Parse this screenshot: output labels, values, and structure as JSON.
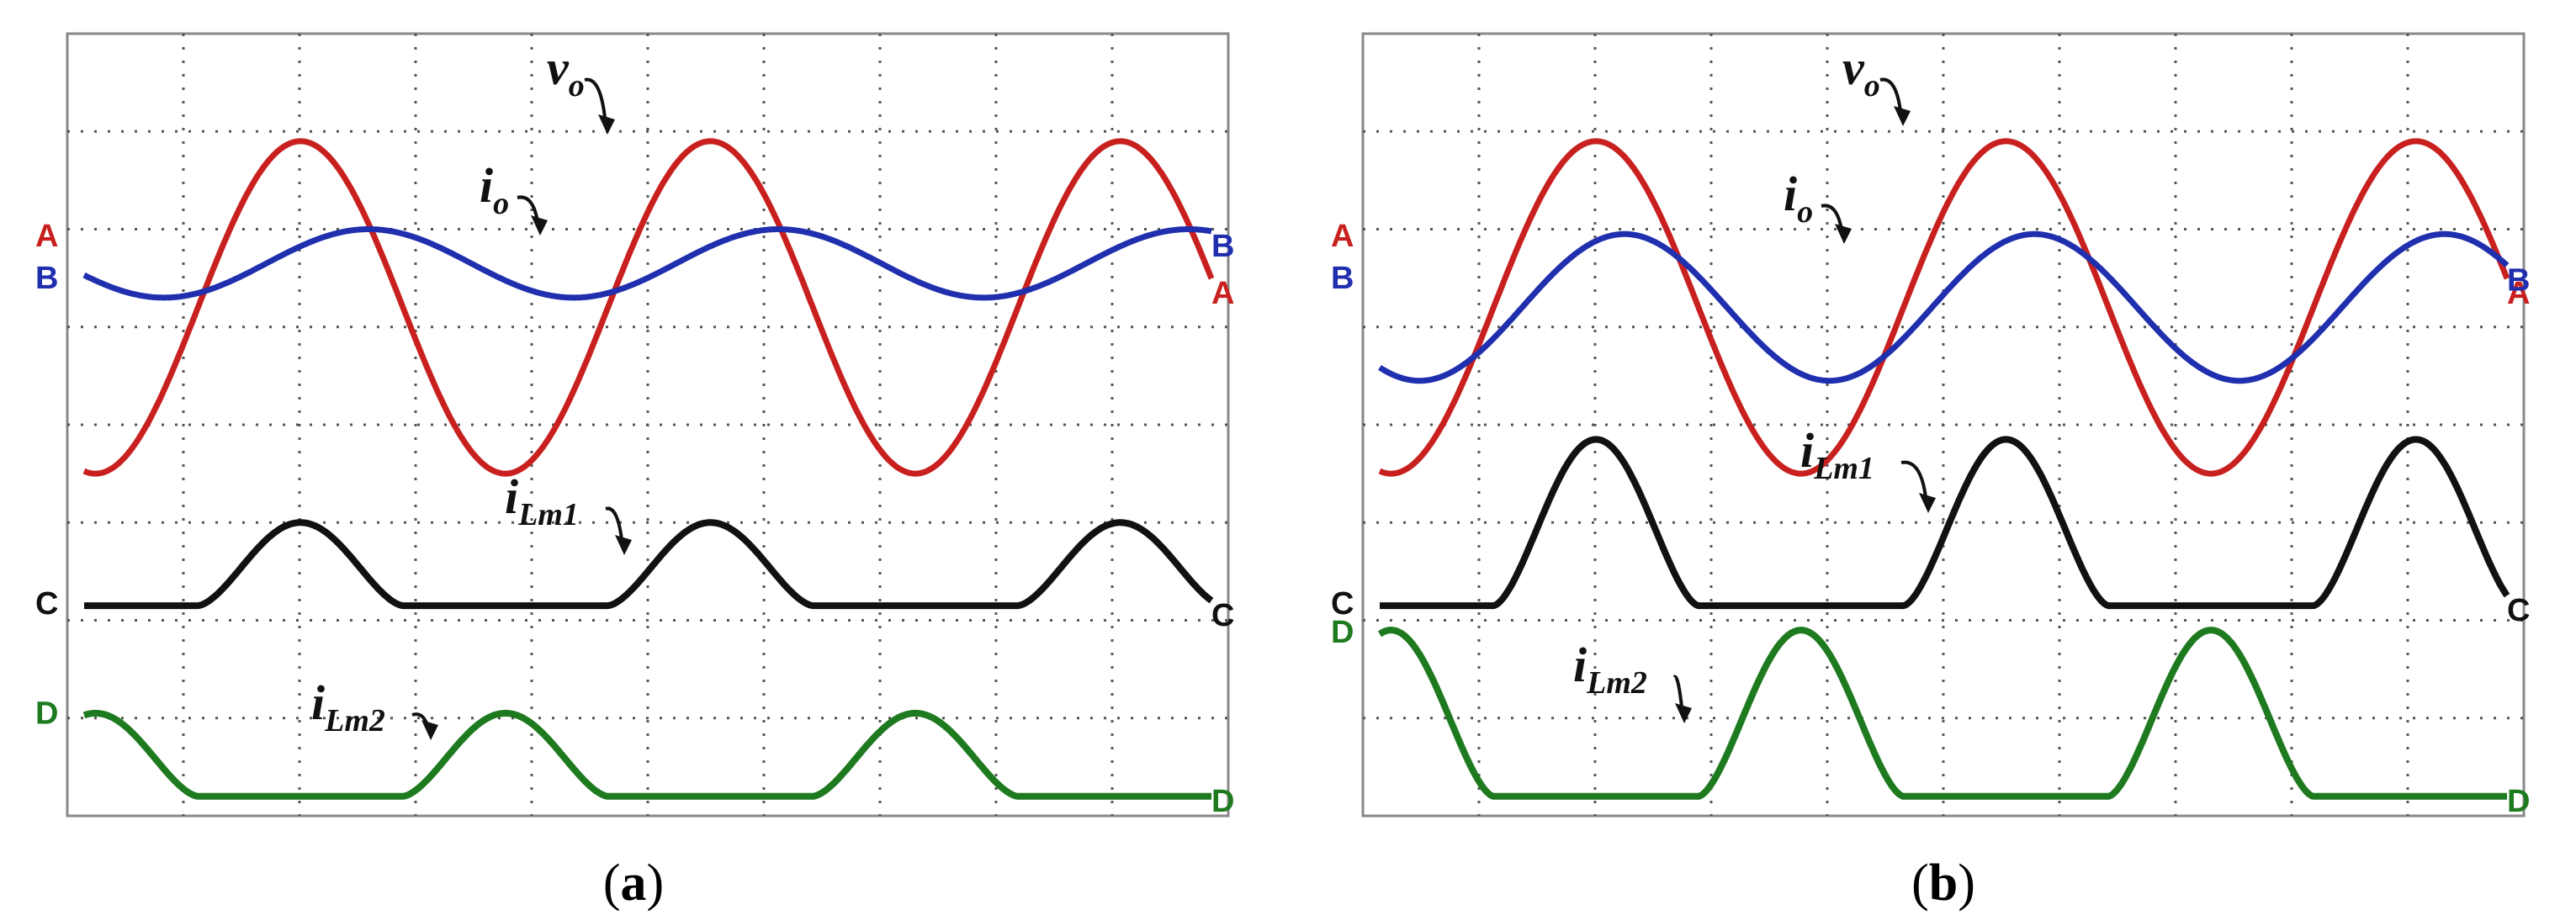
{
  "chart_data": [
    {
      "type": "line",
      "panel_label": "(a)",
      "caption_letter": "a",
      "x": [
        0,
        1,
        2,
        3,
        4,
        5,
        6,
        7,
        8,
        9,
        10
      ],
      "xlim": [
        0,
        10
      ],
      "ylim": [
        0,
        8
      ],
      "grid": true,
      "series": [
        {
          "name": "v",
          "subscript": "o",
          "channel": "A",
          "color": "#c8201e",
          "waveform": "sine",
          "cycles": 2.75,
          "amplitude": 1.7,
          "offset": 5.2,
          "start_phase_deg": 260
        },
        {
          "name": "i",
          "subscript": "o",
          "channel": "B",
          "color": "#1f2fae",
          "waveform": "sine",
          "cycles": 2.75,
          "amplitude": 0.35,
          "offset": 5.65,
          "start_phase_deg": 200
        },
        {
          "name": "i",
          "subscript": "Lm1",
          "channel": "C",
          "color": "#111111",
          "waveform": "pulse",
          "cycles": 2.75,
          "amplitude": 0.85,
          "offset": 2.15,
          "start_phase_deg": 260,
          "pulse_polarity": "positive"
        },
        {
          "name": "i",
          "subscript": "Lm2",
          "channel": "D",
          "color": "#1e7a1e",
          "waveform": "pulse",
          "cycles": 2.75,
          "amplitude": 0.85,
          "offset": 0.2,
          "start_phase_deg": 260,
          "pulse_polarity": "negative"
        }
      ],
      "channel_markers_left": [
        "A",
        "B",
        "C",
        "D"
      ],
      "channel_markers_right": [
        "A",
        "B",
        "C",
        "D"
      ]
    },
    {
      "type": "line",
      "panel_label": "(b)",
      "caption_letter": "b",
      "x": [
        0,
        1,
        2,
        3,
        4,
        5,
        6,
        7,
        8,
        9,
        10
      ],
      "xlim": [
        0,
        10
      ],
      "ylim": [
        0,
        8
      ],
      "grid": true,
      "series": [
        {
          "name": "v",
          "subscript": "o",
          "channel": "A",
          "color": "#c8201e",
          "waveform": "sine",
          "cycles": 2.75,
          "amplitude": 1.7,
          "offset": 5.2,
          "start_phase_deg": 260
        },
        {
          "name": "i",
          "subscript": "o",
          "channel": "B",
          "color": "#1f2fae",
          "waveform": "sine",
          "cycles": 2.75,
          "amplitude": 0.75,
          "offset": 5.2,
          "start_phase_deg": 235
        },
        {
          "name": "i",
          "subscript": "Lm1",
          "channel": "C",
          "color": "#111111",
          "waveform": "pulse",
          "cycles": 2.75,
          "amplitude": 1.7,
          "offset": 2.15,
          "start_phase_deg": 260,
          "pulse_polarity": "positive"
        },
        {
          "name": "i",
          "subscript": "Lm2",
          "channel": "D",
          "color": "#1e7a1e",
          "waveform": "pulse",
          "cycles": 2.75,
          "amplitude": 1.7,
          "offset": 0.2,
          "start_phase_deg": 260,
          "pulse_polarity": "negative"
        }
      ],
      "channel_markers_left": [
        "A",
        "B",
        "C",
        "D"
      ],
      "channel_markers_right": [
        "A",
        "B",
        "C",
        "D"
      ]
    }
  ],
  "labels": {
    "vo": {
      "main": "v",
      "sub": "o"
    },
    "io": {
      "main": "i",
      "sub": "o"
    },
    "iLm1": {
      "main": "i",
      "sub": "Lm1"
    },
    "iLm2": {
      "main": "i",
      "sub": "Lm2"
    }
  },
  "colors": {
    "channel_A": "#c8201e",
    "channel_B": "#1f2fae",
    "channel_C": "#111111",
    "channel_D": "#1e7a1e",
    "grid": "#555555",
    "frame": "#888888"
  }
}
